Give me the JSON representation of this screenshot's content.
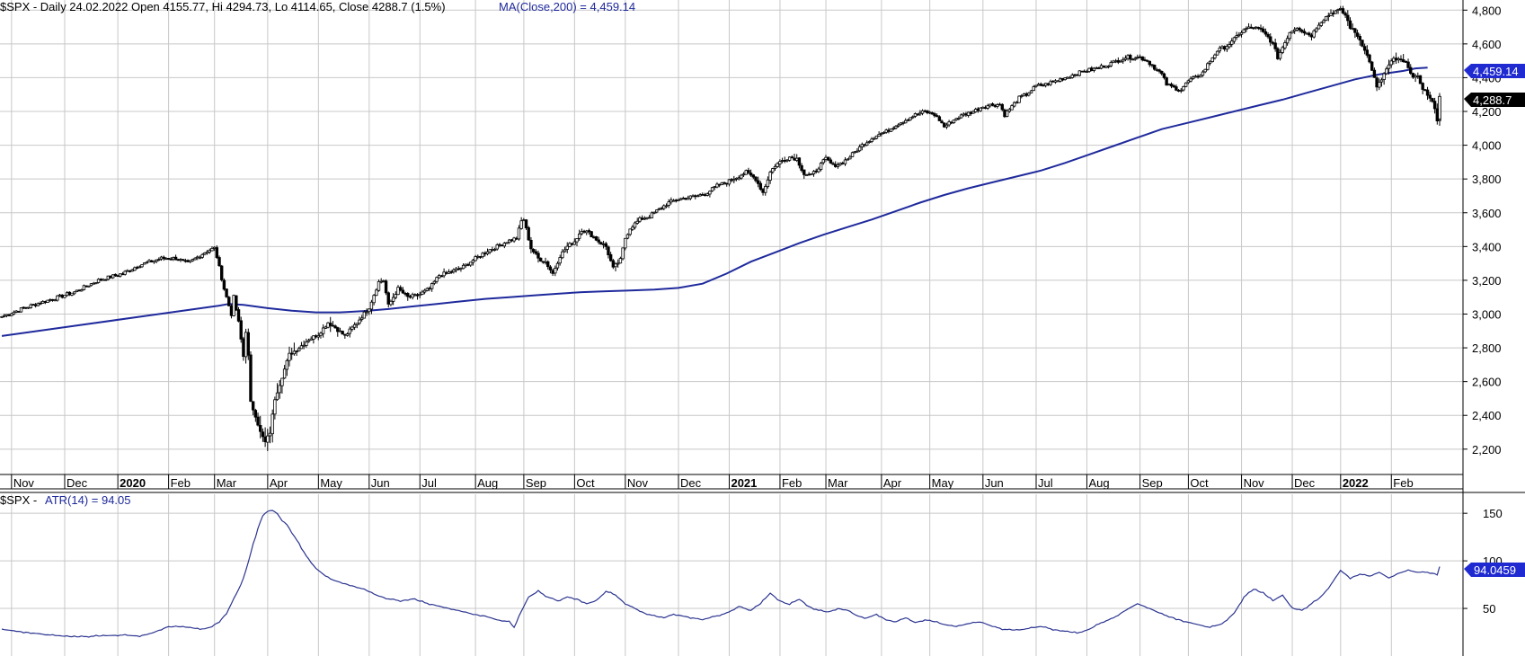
{
  "colors": {
    "price": "#000000",
    "ma": "#1f2a9c",
    "atr": "#2b3490",
    "grid": "#c8c8c8",
    "ma_tag": "#1f2ad0",
    "price_tag": "#000000"
  },
  "price_panel": {
    "symbol_prefix": "$SPX - Daily 24.02.2022 Open 4155.77, Hi 4294.73, Lo 4114.65, Close 4288.7 (1.5%)",
    "ma_label": "MA(Close,200) = 4,459.14",
    "ma_tag": "4,459.14",
    "close_tag": "4,288.7"
  },
  "atr_panel": {
    "prefix": "$SPX - ",
    "label": "ATR(14) = 94.05",
    "tag": "94.0459"
  },
  "chart_data": [
    {
      "type": "candlestick",
      "title": "$SPX - Daily 24.02.2022 Open 4155.77, Hi 4294.73, Lo 4114.65, Close 4288.7 (1.5%)",
      "ylim": [
        2050,
        4860
      ],
      "yticks": [
        "4,800",
        "4,600",
        "4,400",
        "4,200",
        "4,000",
        "3,800",
        "3,600",
        "3,400",
        "3,200",
        "3,000",
        "2,800",
        "2,600",
        "2,400",
        "2,200"
      ],
      "ytick_values": [
        4800,
        4600,
        4400,
        4200,
        4000,
        3800,
        3600,
        3400,
        3200,
        3000,
        2800,
        2600,
        2400,
        2200
      ],
      "xticks": [
        "Nov",
        "Dec",
        "2020",
        "Feb",
        "Mar",
        "Apr",
        "May",
        "Jun",
        "Jul",
        "Aug",
        "Sep",
        "Oct",
        "Nov",
        "Dec",
        "2021",
        "Feb",
        "Mar",
        "Apr",
        "May",
        "Jun",
        "Jul",
        "Aug",
        "Sep",
        "Oct",
        "Nov",
        "Dec",
        "2022",
        "Feb"
      ],
      "xtick_bold": [
        false,
        false,
        true,
        false,
        false,
        false,
        false,
        false,
        false,
        false,
        false,
        false,
        false,
        false,
        true,
        false,
        false,
        false,
        false,
        false,
        false,
        false,
        false,
        false,
        false,
        false,
        true,
        false
      ],
      "xtick_index": [
        7,
        29,
        51,
        72,
        91,
        113,
        134,
        155,
        176,
        199,
        219,
        240,
        261,
        283,
        304,
        325,
        344,
        367,
        387,
        409,
        431,
        452,
        474,
        494,
        516,
        537,
        557,
        578
      ],
      "close_anchors": [
        [
          0,
          2985
        ],
        [
          10,
          3040
        ],
        [
          20,
          3085
        ],
        [
          30,
          3130
        ],
        [
          40,
          3200
        ],
        [
          50,
          3240
        ],
        [
          57,
          3290
        ],
        [
          66,
          3330
        ],
        [
          72,
          3330
        ],
        [
          77,
          3300
        ],
        [
          85,
          3375
        ],
        [
          88,
          3390
        ],
        [
          89,
          3340
        ],
        [
          92,
          3150
        ],
        [
          95,
          3000
        ],
        [
          96,
          3100
        ],
        [
          98,
          2950
        ],
        [
          100,
          2750
        ],
        [
          101,
          2900
        ],
        [
          102,
          2750
        ],
        [
          103,
          2475
        ],
        [
          105,
          2400
        ],
        [
          107,
          2300
        ],
        [
          109,
          2240
        ],
        [
          111,
          2300
        ],
        [
          113,
          2500
        ],
        [
          116,
          2630
        ],
        [
          119,
          2760
        ],
        [
          123,
          2800
        ],
        [
          127,
          2850
        ],
        [
          131,
          2880
        ],
        [
          135,
          2950
        ],
        [
          138,
          2920
        ],
        [
          142,
          2870
        ],
        [
          147,
          2950
        ],
        [
          152,
          3040
        ],
        [
          156,
          3190
        ],
        [
          158,
          3200
        ],
        [
          160,
          3050
        ],
        [
          164,
          3150
        ],
        [
          168,
          3100
        ],
        [
          172,
          3110
        ],
        [
          177,
          3150
        ],
        [
          181,
          3230
        ],
        [
          186,
          3250
        ],
        [
          191,
          3280
        ],
        [
          195,
          3320
        ],
        [
          201,
          3375
        ],
        [
          205,
          3400
        ],
        [
          209,
          3430
        ],
        [
          213,
          3450
        ],
        [
          215,
          3550
        ],
        [
          216,
          3560
        ],
        [
          219,
          3390
        ],
        [
          222,
          3330
        ],
        [
          225,
          3310
        ],
        [
          228,
          3240
        ],
        [
          231,
          3345
        ],
        [
          234,
          3400
        ],
        [
          237,
          3430
        ],
        [
          240,
          3500
        ],
        [
          243,
          3480
        ],
        [
          247,
          3430
        ],
        [
          250,
          3400
        ],
        [
          253,
          3270
        ],
        [
          256,
          3320
        ],
        [
          258,
          3450
        ],
        [
          260,
          3510
        ],
        [
          264,
          3560
        ],
        [
          268,
          3580
        ],
        [
          272,
          3620
        ],
        [
          276,
          3660
        ],
        [
          280,
          3680
        ],
        [
          284,
          3690
        ],
        [
          288,
          3700
        ],
        [
          292,
          3720
        ],
        [
          296,
          3760
        ],
        [
          300,
          3780
        ],
        [
          304,
          3810
        ],
        [
          308,
          3840
        ],
        [
          312,
          3800
        ],
        [
          315,
          3720
        ],
        [
          318,
          3840
        ],
        [
          320,
          3880
        ],
        [
          323,
          3910
        ],
        [
          326,
          3930
        ],
        [
          329,
          3920
        ],
        [
          332,
          3830
        ],
        [
          335,
          3820
        ],
        [
          338,
          3870
        ],
        [
          341,
          3920
        ],
        [
          344,
          3880
        ],
        [
          347,
          3890
        ],
        [
          350,
          3920
        ],
        [
          353,
          3960
        ],
        [
          356,
          4000
        ],
        [
          359,
          4030
        ],
        [
          362,
          4060
        ],
        [
          366,
          4080
        ],
        [
          370,
          4120
        ],
        [
          374,
          4150
        ],
        [
          378,
          4180
        ],
        [
          382,
          4200
        ],
        [
          386,
          4180
        ],
        [
          388,
          4150
        ],
        [
          390,
          4110
        ],
        [
          392,
          4130
        ],
        [
          395,
          4160
        ],
        [
          398,
          4180
        ],
        [
          402,
          4200
        ],
        [
          406,
          4230
        ],
        [
          410,
          4240
        ],
        [
          413,
          4240
        ],
        [
          415,
          4180
        ],
        [
          418,
          4230
        ],
        [
          421,
          4280
        ],
        [
          424,
          4300
        ],
        [
          428,
          4350
        ],
        [
          432,
          4360
        ],
        [
          436,
          4380
        ],
        [
          440,
          4400
        ],
        [
          444,
          4420
        ],
        [
          448,
          4440
        ],
        [
          452,
          4450
        ],
        [
          456,
          4470
        ],
        [
          460,
          4490
        ],
        [
          465,
          4520
        ],
        [
          468,
          4520
        ],
        [
          471,
          4520
        ],
        [
          474,
          4500
        ],
        [
          477,
          4460
        ],
        [
          480,
          4420
        ],
        [
          482,
          4360
        ],
        [
          485,
          4340
        ],
        [
          488,
          4330
        ],
        [
          491,
          4380
        ],
        [
          494,
          4400
        ],
        [
          497,
          4430
        ],
        [
          500,
          4500
        ],
        [
          503,
          4560
        ],
        [
          506,
          4580
        ],
        [
          509,
          4610
        ],
        [
          512,
          4660
        ],
        [
          515,
          4690
        ],
        [
          518,
          4700
        ],
        [
          521,
          4680
        ],
        [
          524,
          4640
        ],
        [
          526,
          4600
        ],
        [
          528,
          4520
        ],
        [
          530,
          4580
        ],
        [
          533,
          4670
        ],
        [
          536,
          4700
        ],
        [
          539,
          4670
        ],
        [
          542,
          4650
        ],
        [
          545,
          4720
        ],
        [
          548,
          4760
        ],
        [
          551,
          4790
        ],
        [
          554,
          4800
        ],
        [
          556,
          4770
        ],
        [
          558,
          4700
        ],
        [
          561,
          4650
        ],
        [
          564,
          4570
        ],
        [
          567,
          4450
        ],
        [
          569,
          4340
        ],
        [
          571,
          4390
        ],
        [
          573,
          4450
        ],
        [
          576,
          4510
        ],
        [
          579,
          4500
        ],
        [
          582,
          4470
        ],
        [
          584,
          4400
        ],
        [
          586,
          4400
        ],
        [
          588,
          4340
        ],
        [
          590,
          4300
        ],
        [
          592,
          4250
        ],
        [
          593,
          4225
        ],
        [
          594,
          4150
        ],
        [
          595,
          4289
        ]
      ],
      "series": [
        {
          "name": "MA(Close,200)",
          "x": [
            0,
            30,
            60,
            90,
            94,
            100,
            110,
            120,
            130,
            140,
            150,
            160,
            170,
            180,
            190,
            200,
            210,
            220,
            230,
            240,
            250,
            260,
            270,
            280,
            290,
            300,
            310,
            320,
            330,
            340,
            350,
            360,
            370,
            380,
            390,
            400,
            410,
            420,
            430,
            440,
            450,
            460,
            470,
            480,
            490,
            500,
            510,
            520,
            530,
            540,
            550,
            560,
            570,
            580,
            585,
            590
          ],
          "values": [
            2870,
            2930,
            2990,
            3050,
            3060,
            3055,
            3035,
            3020,
            3010,
            3010,
            3018,
            3030,
            3045,
            3060,
            3075,
            3090,
            3100,
            3110,
            3120,
            3130,
            3135,
            3140,
            3145,
            3155,
            3180,
            3240,
            3310,
            3365,
            3420,
            3470,
            3515,
            3560,
            3610,
            3660,
            3705,
            3745,
            3780,
            3815,
            3850,
            3895,
            3945,
            3995,
            4045,
            4095,
            4130,
            4165,
            4200,
            4235,
            4270,
            4310,
            4350,
            4390,
            4420,
            4440,
            4455,
            4459
          ]
        }
      ]
    },
    {
      "type": "line",
      "title": "ATR(14) = 94.05",
      "ylim": [
        0,
        170
      ],
      "yticks": [
        "150",
        "100",
        "50"
      ],
      "ytick_values": [
        150,
        100,
        50
      ],
      "series": [
        {
          "name": "ATR(14)",
          "x": [
            0,
            10,
            20,
            30,
            40,
            50,
            57,
            62,
            68,
            72,
            78,
            82,
            86,
            90,
            93,
            95,
            98,
            100,
            102,
            104,
            106,
            108,
            110,
            112,
            114,
            116,
            118,
            120,
            122,
            124,
            126,
            128,
            130,
            132,
            134,
            136,
            138,
            142,
            146,
            150,
            155,
            160,
            165,
            170,
            175,
            180,
            185,
            190,
            195,
            200,
            205,
            210,
            212,
            214,
            216,
            218,
            222,
            226,
            230,
            234,
            238,
            242,
            246,
            250,
            254,
            258,
            262,
            266,
            270,
            274,
            278,
            282,
            286,
            290,
            294,
            300,
            305,
            310,
            314,
            318,
            322,
            326,
            330,
            334,
            338,
            342,
            346,
            350,
            354,
            358,
            362,
            366,
            370,
            374,
            378,
            382,
            386,
            390,
            395,
            400,
            405,
            410,
            415,
            420,
            425,
            430,
            435,
            440,
            445,
            450,
            455,
            460,
            465,
            470,
            475,
            480,
            485,
            490,
            495,
            500,
            505,
            510,
            514,
            518,
            522,
            526,
            530,
            534,
            538,
            542,
            546,
            550,
            554,
            558,
            562,
            566,
            570,
            574,
            578,
            582,
            586,
            590,
            594,
            595
          ],
          "values": [
            28,
            25,
            22,
            20,
            21,
            22,
            21,
            24,
            30,
            31,
            30,
            28,
            30,
            36,
            45,
            55,
            70,
            82,
            98,
            118,
            134,
            148,
            152,
            153,
            150,
            142,
            138,
            130,
            122,
            113,
            106,
            98,
            92,
            88,
            84,
            81,
            79,
            76,
            73,
            70,
            64,
            60,
            58,
            60,
            56,
            53,
            50,
            47,
            44,
            42,
            38,
            36,
            30,
            42,
            52,
            62,
            68,
            62,
            58,
            62,
            60,
            55,
            58,
            68,
            64,
            55,
            50,
            45,
            42,
            40,
            44,
            42,
            40,
            38,
            41,
            45,
            52,
            48,
            55,
            66,
            58,
            54,
            60,
            52,
            48,
            46,
            50,
            48,
            42,
            40,
            44,
            38,
            36,
            40,
            35,
            38,
            36,
            33,
            31,
            34,
            36,
            31,
            28,
            27,
            29,
            31,
            28,
            26,
            24,
            28,
            35,
            40,
            48,
            55,
            50,
            44,
            40,
            36,
            33,
            30,
            34,
            45,
            62,
            70,
            66,
            58,
            64,
            50,
            48,
            55,
            62,
            75,
            90,
            82,
            86,
            84,
            88,
            82,
            87,
            90,
            88,
            88,
            86,
            94
          ]
        }
      ]
    }
  ]
}
